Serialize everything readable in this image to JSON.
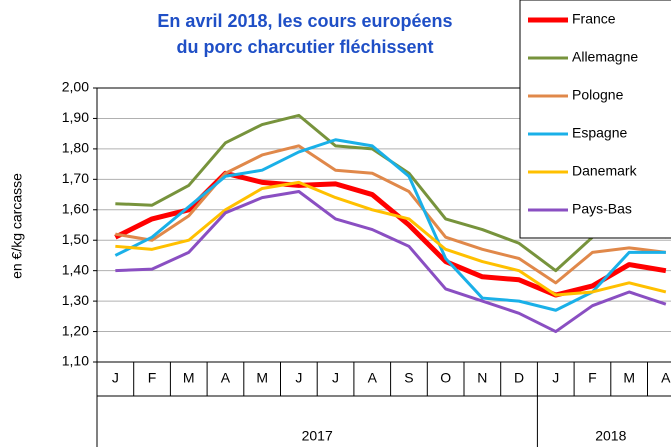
{
  "chart_data": {
    "type": "line",
    "title": [
      "En avril 2018, les cours européens",
      "du porc charcutier fléchissent"
    ],
    "y_label": "en €/kg carcasse",
    "categories": [
      "J",
      "F",
      "M",
      "A",
      "M",
      "J",
      "J",
      "A",
      "S",
      "O",
      "N",
      "D",
      "J",
      "F",
      "M",
      "A"
    ],
    "groups": [
      {
        "label": "2017",
        "count": 12
      },
      {
        "label": "2018",
        "count": 4
      }
    ],
    "ylim": [
      1.1,
      2.0
    ],
    "yticks": [
      {
        "value": 1.1,
        "label": "1,10"
      },
      {
        "value": 1.2,
        "label": "1,20"
      },
      {
        "value": 1.3,
        "label": "1,30"
      },
      {
        "value": 1.4,
        "label": "1,40"
      },
      {
        "value": 1.5,
        "label": "1,50"
      },
      {
        "value": 1.6,
        "label": "1,60"
      },
      {
        "value": 1.7,
        "label": "1,70"
      },
      {
        "value": 1.8,
        "label": "1,80"
      },
      {
        "value": 1.9,
        "label": "1,90"
      },
      {
        "value": 2.0,
        "label": "2,00"
      }
    ],
    "grid": true,
    "legend": "top-right",
    "series": [
      {
        "name": "France",
        "color": "#ff0000",
        "values": [
          1.51,
          1.57,
          1.6,
          1.72,
          1.69,
          1.68,
          1.685,
          1.65,
          1.55,
          1.43,
          1.38,
          1.37,
          1.32,
          1.35,
          1.42,
          1.4
        ]
      },
      {
        "name": "Allemagne",
        "color": "#77933c",
        "values": [
          1.62,
          1.615,
          1.68,
          1.82,
          1.88,
          1.91,
          1.81,
          1.8,
          1.72,
          1.57,
          1.535,
          1.49,
          1.4,
          1.51,
          1.55,
          1.51
        ]
      },
      {
        "name": "Pologne",
        "color": "#e0884a",
        "values": [
          1.52,
          1.5,
          1.58,
          1.72,
          1.78,
          1.81,
          1.73,
          1.72,
          1.66,
          1.51,
          1.47,
          1.44,
          1.36,
          1.46,
          1.475,
          1.46
        ]
      },
      {
        "name": "Espagne",
        "color": "#1ab0e8",
        "values": [
          1.45,
          1.51,
          1.61,
          1.71,
          1.73,
          1.79,
          1.83,
          1.81,
          1.71,
          1.44,
          1.31,
          1.3,
          1.27,
          1.33,
          1.46,
          1.46
        ]
      },
      {
        "name": "Danemark",
        "color": "#ffc000",
        "values": [
          1.48,
          1.47,
          1.5,
          1.6,
          1.67,
          1.69,
          1.64,
          1.6,
          1.57,
          1.47,
          1.43,
          1.4,
          1.32,
          1.33,
          1.36,
          1.33
        ]
      },
      {
        "name": "Pays-Bas",
        "color": "#8a4fc2",
        "values": [
          1.4,
          1.405,
          1.46,
          1.59,
          1.64,
          1.66,
          1.57,
          1.535,
          1.48,
          1.34,
          1.3,
          1.26,
          1.2,
          1.285,
          1.33,
          1.29
        ]
      }
    ]
  }
}
